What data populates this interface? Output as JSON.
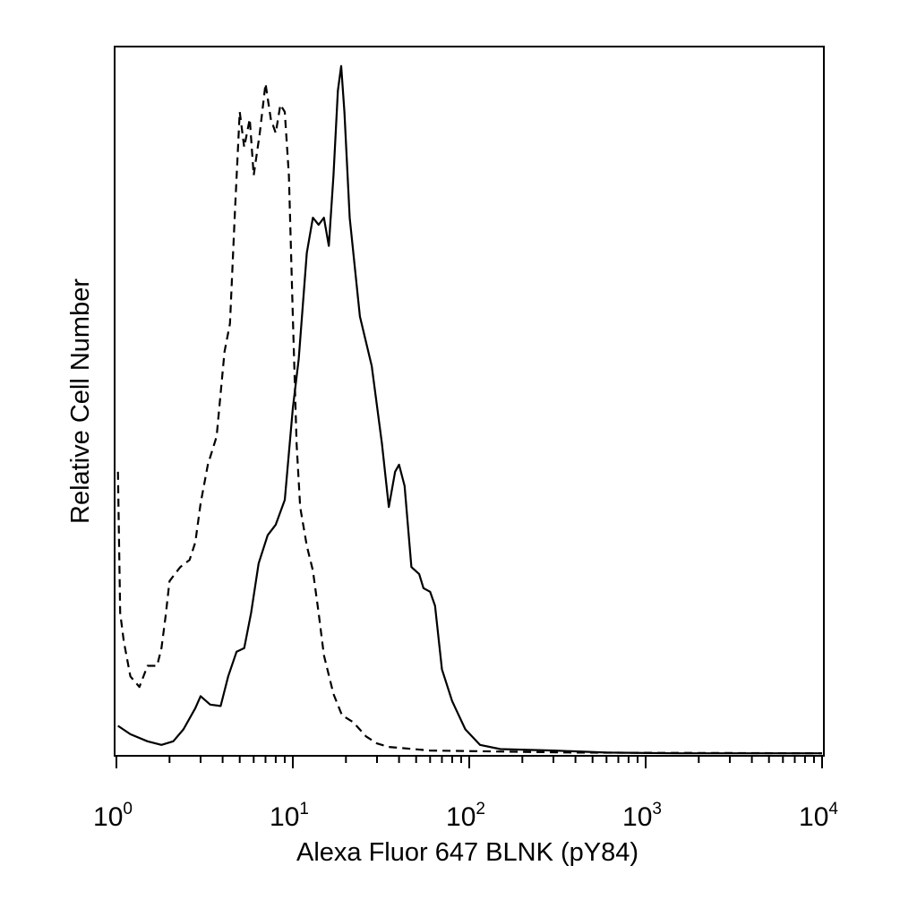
{
  "chart_data": {
    "type": "line",
    "title": "",
    "xlabel": "Alexa Fluor 647 BLNK (pY84)",
    "ylabel": "Relative Cell Number",
    "xscale": "log",
    "xlim": [
      1,
      10000
    ],
    "ylim": [
      0,
      100
    ],
    "x_ticks": [
      {
        "base": "10",
        "exp": "0",
        "value": 1
      },
      {
        "base": "10",
        "exp": "1",
        "value": 10
      },
      {
        "base": "10",
        "exp": "2",
        "value": 100
      },
      {
        "base": "10",
        "exp": "3",
        "value": 1000
      },
      {
        "base": "10",
        "exp": "4",
        "value": 10000
      }
    ],
    "grid": false,
    "legend": "none",
    "series": [
      {
        "style": "solid",
        "color": "#000000",
        "points": [
          [
            1.02,
            4
          ],
          [
            1.2,
            2.8
          ],
          [
            1.5,
            1.8
          ],
          [
            1.8,
            1.3
          ],
          [
            2.1,
            1.8
          ],
          [
            2.4,
            3.5
          ],
          [
            2.8,
            6.5
          ],
          [
            3.0,
            8.2
          ],
          [
            3.4,
            7
          ],
          [
            3.9,
            6.8
          ],
          [
            4.3,
            11
          ],
          [
            4.8,
            14.5
          ],
          [
            5.3,
            15
          ],
          [
            5.8,
            20
          ],
          [
            6.4,
            27
          ],
          [
            7.2,
            31
          ],
          [
            8.0,
            32.5
          ],
          [
            9.0,
            36
          ],
          [
            10.0,
            49
          ],
          [
            10.8,
            56
          ],
          [
            12.0,
            71
          ],
          [
            13.0,
            76
          ],
          [
            14.0,
            75
          ],
          [
            15.0,
            76
          ],
          [
            16.0,
            72
          ],
          [
            17.0,
            82
          ],
          [
            18.0,
            94
          ],
          [
            18.8,
            97.5
          ],
          [
            19.6,
            91
          ],
          [
            21.0,
            76
          ],
          [
            24.0,
            62
          ],
          [
            28.0,
            55
          ],
          [
            32.0,
            44
          ],
          [
            35.0,
            35
          ],
          [
            38.0,
            40
          ],
          [
            40.0,
            41
          ],
          [
            43.0,
            38
          ],
          [
            47.0,
            26.5
          ],
          [
            52.0,
            25.5
          ],
          [
            55.0,
            23.5
          ],
          [
            60.0,
            23
          ],
          [
            64.0,
            21
          ],
          [
            70.0,
            12
          ],
          [
            80.0,
            7.5
          ],
          [
            95.0,
            3.5
          ],
          [
            115.0,
            1.3
          ],
          [
            150.0,
            0.7
          ],
          [
            300.0,
            0.5
          ],
          [
            600.0,
            0.2
          ],
          [
            1500.0,
            0.1
          ],
          [
            10000.0,
            0.1
          ]
        ]
      },
      {
        "style": "dashed",
        "color": "#000000",
        "points": [
          [
            1.02,
            40
          ],
          [
            1.05,
            20
          ],
          [
            1.1,
            16
          ],
          [
            1.2,
            11
          ],
          [
            1.35,
            9.5
          ],
          [
            1.5,
            12.5
          ],
          [
            1.7,
            12.5
          ],
          [
            1.8,
            15
          ],
          [
            1.9,
            19.5
          ],
          [
            2.0,
            24.5
          ],
          [
            2.3,
            26.5
          ],
          [
            2.6,
            27.5
          ],
          [
            2.8,
            30
          ],
          [
            3.0,
            35.5
          ],
          [
            3.3,
            41
          ],
          [
            3.7,
            45
          ],
          [
            4.1,
            57
          ],
          [
            4.4,
            61
          ],
          [
            4.7,
            77
          ],
          [
            5.0,
            91
          ],
          [
            5.3,
            86
          ],
          [
            5.7,
            90
          ],
          [
            6.0,
            82
          ],
          [
            6.5,
            88
          ],
          [
            7.0,
            95
          ],
          [
            7.5,
            90
          ],
          [
            8.0,
            88
          ],
          [
            8.5,
            92
          ],
          [
            9.0,
            91
          ],
          [
            9.5,
            82
          ],
          [
            10.0,
            62
          ],
          [
            10.5,
            44
          ],
          [
            11.0,
            35
          ],
          [
            12.0,
            29.5
          ],
          [
            13.0,
            26
          ],
          [
            14.0,
            20
          ],
          [
            15.0,
            14
          ],
          [
            17.0,
            8.5
          ],
          [
            19.0,
            5.5
          ],
          [
            22.0,
            4.5
          ],
          [
            26.0,
            2.5
          ],
          [
            30.0,
            1.5
          ],
          [
            35.0,
            1
          ],
          [
            60.0,
            0.5
          ],
          [
            200.0,
            0.3
          ],
          [
            400.0,
            0.2
          ],
          [
            10000.0,
            0.1
          ]
        ]
      }
    ]
  }
}
